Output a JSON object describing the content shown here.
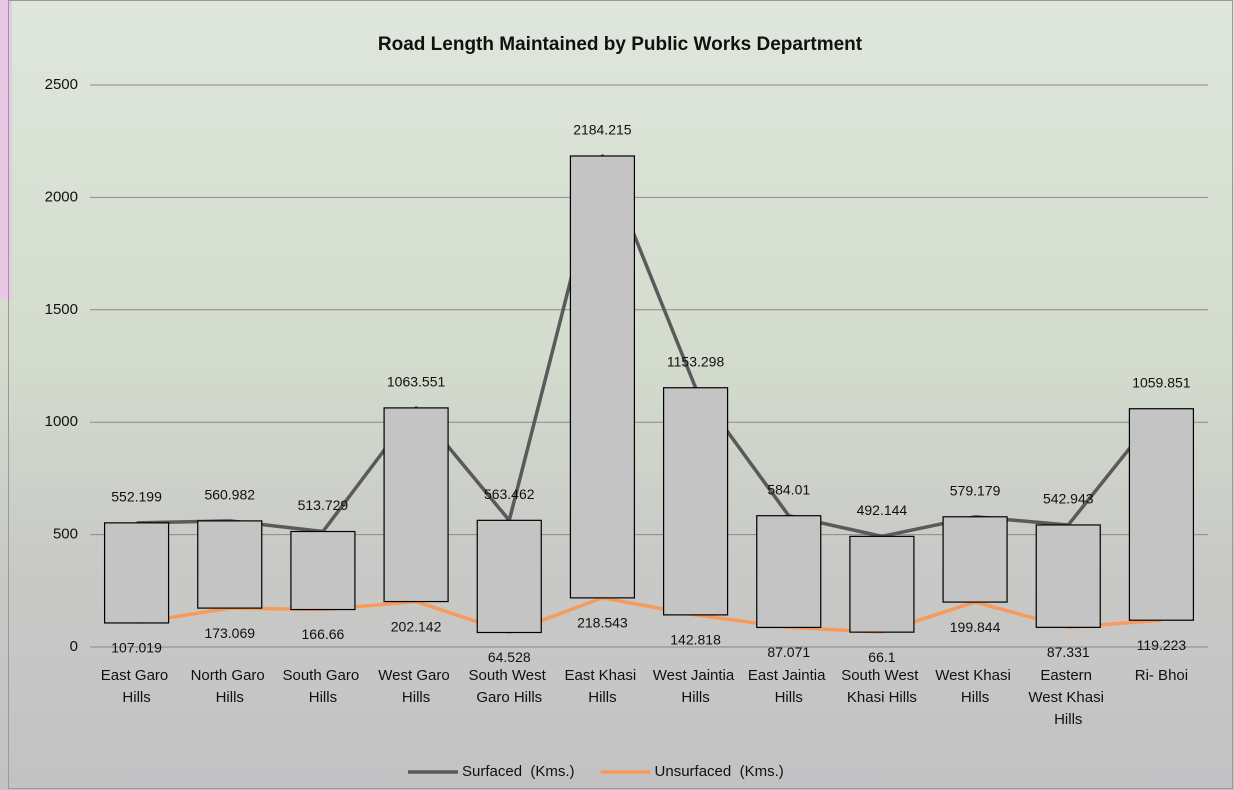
{
  "chart_data": {
    "type": "line",
    "up_down_bars": true,
    "title": "Road Length Maintained by Public Works Department",
    "categories": [
      "East Garo Hills",
      "North Garo Hills",
      "South Garo Hills",
      "West Garo Hills",
      "South West Garo Hills",
      "East Khasi Hills",
      "West Jaintia Hills",
      "East Jaintia Hills",
      "South West Khasi Hills",
      "West Khasi Hills",
      "Eastern West Khasi Hills",
      "Ri- Bhoi"
    ],
    "series": [
      {
        "name": "Surfaced  (Kms.)",
        "color": "#5a5a5a",
        "values": [
          552.199,
          560.982,
          513.729,
          1063.551,
          563.462,
          2184.215,
          1153.298,
          584.01,
          492.144,
          579.179,
          542.943,
          1059.851
        ]
      },
      {
        "name": "Unsurfaced  (Kms.)",
        "color": "#f79b5c",
        "values": [
          107.019,
          173.069,
          166.66,
          202.142,
          64.528,
          218.543,
          142.818,
          87.071,
          66.1,
          199.844,
          87.331,
          119.223
        ]
      }
    ],
    "bar_color": "#c4c4c4",
    "ylim": [
      0,
      2500
    ],
    "yticks": [
      0,
      500,
      1000,
      1500,
      2000,
      2500
    ],
    "grid": true,
    "legend": "bottom"
  }
}
